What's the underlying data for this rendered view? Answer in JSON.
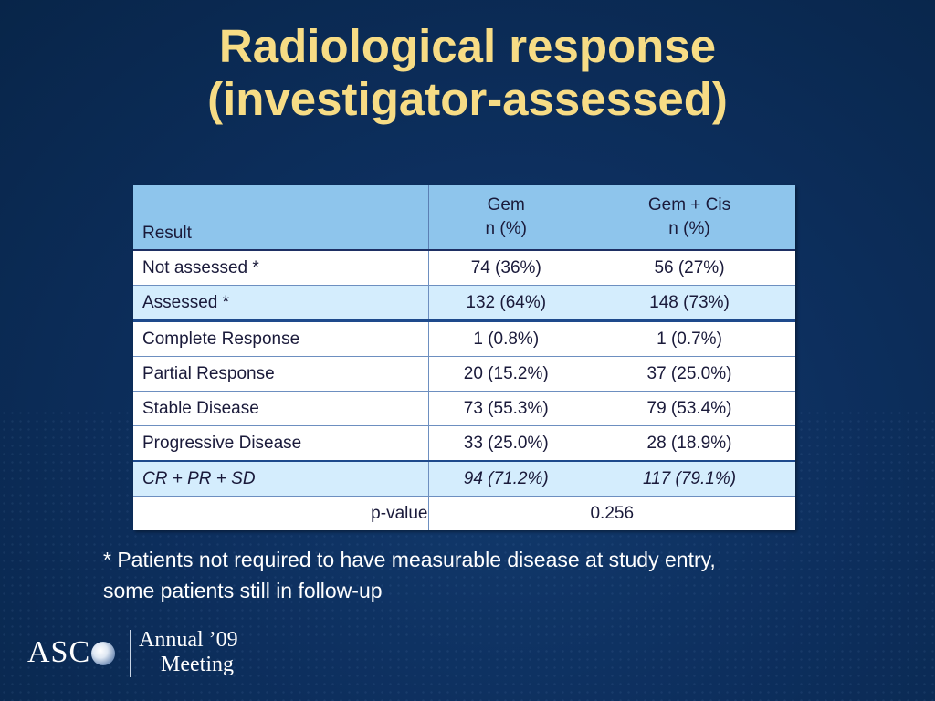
{
  "title": {
    "line1": "Radiological response",
    "line2": "(investigator-assessed)"
  },
  "table": {
    "header": {
      "result": "Result",
      "col1_line1": "Gem",
      "col1_line2": "n (%)",
      "col2_line1": "Gem + Cis",
      "col2_line2": "n (%)"
    },
    "rows": [
      {
        "label": "Not assessed *",
        "gem": "74 (36%)",
        "gemcis": "56 (27%)"
      },
      {
        "label": "Assessed *",
        "gem": "132 (64%)",
        "gemcis": "148 (73%)"
      },
      {
        "label": "Complete Response",
        "gem": "1 (0.8%)",
        "gemcis": "1 (0.7%)"
      },
      {
        "label": "Partial Response",
        "gem": "20 (15.2%)",
        "gemcis": "37 (25.0%)"
      },
      {
        "label": "Stable Disease",
        "gem": "73 (55.3%)",
        "gemcis": "79 (53.4%)"
      },
      {
        "label": "Progressive Disease",
        "gem": "33 (25.0%)",
        "gemcis": "28 (18.9%)"
      },
      {
        "label": "CR + PR + SD",
        "gem": "94 (71.2%)",
        "gemcis": "117 (79.1%)"
      }
    ],
    "pvalue": {
      "label": "p-value",
      "value": "0.256"
    }
  },
  "footnote": {
    "line1": "* Patients not required to have measurable disease at study entry,",
    "line2": "some patients still in follow-up"
  },
  "logo": {
    "asco": "ASC",
    "annual": "Annual ’09",
    "meeting": "Meeting"
  },
  "colors": {
    "background": "#0d2f5e",
    "title": "#f7dc85",
    "header_fill": "#8ec5ec",
    "row_highlight": "#d4edfd"
  }
}
